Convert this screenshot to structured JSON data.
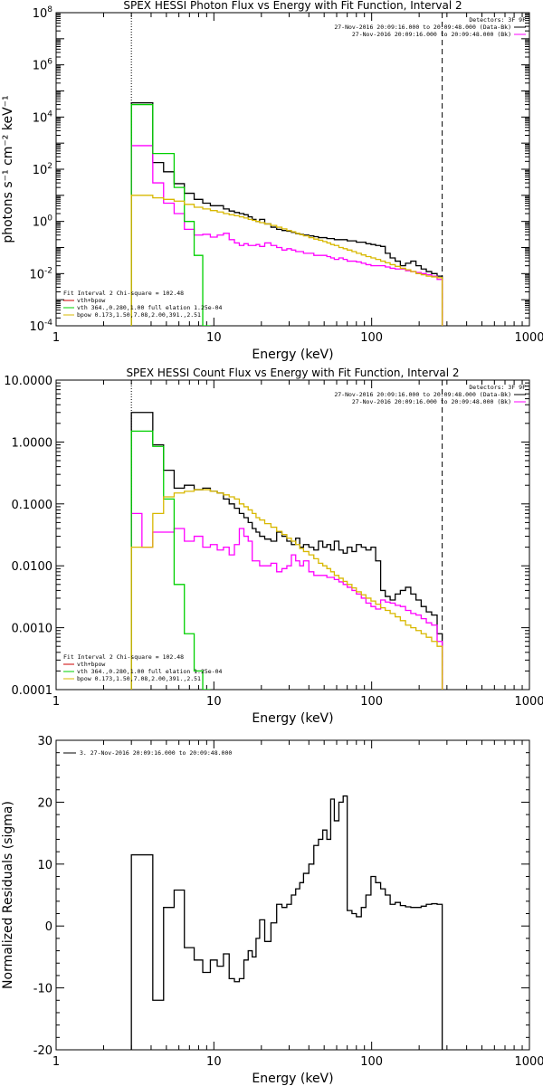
{
  "colors": {
    "data": "#000000",
    "total": "#ff00ff",
    "vth": "#00d000",
    "bpow": "#d8b800",
    "legend_red": "#cc0000"
  },
  "chart_data": [
    {
      "type": "line",
      "title": "SPEX HESSI Photon Flux vs Energy with Fit Function, Interval 2",
      "xlabel": "Energy (keV)",
      "ylabel": "photons s⁻¹ cm⁻² keV⁻¹",
      "xscale": "log",
      "yscale": "log",
      "xlim": [
        1,
        1000
      ],
      "ylim": [
        0.0001,
        100000000
      ],
      "xtick_labels": [
        "1",
        "10",
        "100",
        "1000"
      ],
      "ytick_labels": [
        "10^-4",
        "10^-2",
        "10^0",
        "10^2",
        "10^4",
        "10^6"
      ],
      "ytick_values": [
        0.0001,
        0.01,
        1,
        100,
        10000,
        1000000
      ],
      "yaxis_top_label": "10^8",
      "vlines": [
        {
          "x": 3.0,
          "style": "dotted"
        },
        {
          "x": 280,
          "style": "dashed"
        }
      ],
      "detectors_label": "Detectors: 3F 9F",
      "legend_right": [
        {
          "text": "27-Nov-2016 20:09:16.000 to 20:09:48.000 (Data-Bk)",
          "color": "#000000"
        },
        {
          "text": "27-Nov-2016 20:09:16.000 to 20:09:48.000 (Bk)",
          "color": "#ff00ff"
        }
      ],
      "fit_label": "Fit Interval 2   Chi-square = 102.48",
      "fit_legend": [
        {
          "text": "vth+bpow",
          "color": "#cc0000"
        },
        {
          "text": "vth 364.,0.280,1.00  full elation 1.25e-04",
          "color": "#00d000"
        },
        {
          "text": "bpow 0.173,1.50,7.08,2.00,391.,2.51",
          "color": "#d8b800"
        }
      ],
      "edges": [
        3.0,
        3.5,
        4.1,
        4.8,
        5.6,
        6.5,
        7.5,
        8.5,
        9.5,
        10.5,
        11.5,
        12.5,
        13.5,
        14.5,
        15.5,
        16.5,
        17.5,
        18.5,
        19.5,
        21,
        23,
        25,
        27,
        29,
        31,
        33,
        35,
        37,
        40,
        43,
        46,
        49,
        52,
        55,
        58,
        62,
        66,
        70,
        75,
        80,
        86,
        92,
        99,
        106,
        114,
        122,
        131,
        141,
        152,
        164,
        177,
        191,
        206,
        222,
        240,
        260,
        280
      ],
      "series": [
        {
          "name": "Data-Bk",
          "color": "#000000",
          "values": [
            35000,
            35000,
            180,
            80,
            28,
            12,
            7,
            5,
            4,
            4,
            3,
            2.5,
            2.2,
            2.0,
            1.8,
            1.5,
            1.2,
            1.0,
            1.2,
            0.8,
            0.6,
            0.5,
            0.45,
            0.42,
            0.38,
            0.34,
            0.32,
            0.3,
            0.28,
            0.26,
            0.24,
            0.24,
            0.22,
            0.22,
            0.2,
            0.2,
            0.2,
            0.18,
            0.18,
            0.16,
            0.16,
            0.14,
            0.13,
            0.12,
            0.11,
            0.06,
            0.04,
            0.03,
            0.02,
            0.025,
            0.03,
            0.02,
            0.015,
            0.012,
            0.01,
            0.008
          ]
        },
        {
          "name": "Bk",
          "color": "#ff00ff",
          "values": [
            800,
            800,
            30,
            5,
            2,
            0.5,
            0.3,
            0.32,
            0.25,
            0.3,
            0.35,
            0.2,
            0.15,
            0.12,
            0.14,
            0.12,
            0.12,
            0.13,
            0.11,
            0.15,
            0.12,
            0.1,
            0.08,
            0.09,
            0.08,
            0.07,
            0.07,
            0.06,
            0.06,
            0.05,
            0.05,
            0.05,
            0.045,
            0.04,
            0.035,
            0.04,
            0.035,
            0.03,
            0.03,
            0.028,
            0.025,
            0.022,
            0.02,
            0.02,
            0.02,
            0.018,
            0.016,
            0.015,
            0.015,
            0.013,
            0.012,
            0.011,
            0.01,
            0.009,
            0.008,
            0.006
          ]
        },
        {
          "name": "vth",
          "color": "#00d000",
          "values": [
            30000,
            30000,
            400,
            400,
            20,
            1.0,
            0.05,
            0.0001
          ]
        },
        {
          "name": "bpow",
          "color": "#d8b800",
          "values": [
            10,
            10,
            8,
            7,
            6,
            4.5,
            3.5,
            3.0,
            2.6,
            2.3,
            2.0,
            1.8,
            1.65,
            1.5,
            1.35,
            1.2,
            1.1,
            1.0,
            0.9,
            0.8,
            0.7,
            0.6,
            0.52,
            0.45,
            0.4,
            0.35,
            0.31,
            0.28,
            0.24,
            0.21,
            0.19,
            0.17,
            0.15,
            0.13,
            0.12,
            0.1,
            0.09,
            0.08,
            0.07,
            0.06,
            0.052,
            0.045,
            0.04,
            0.035,
            0.03,
            0.026,
            0.022,
            0.019,
            0.016,
            0.014,
            0.012,
            0.01,
            0.009,
            0.008,
            0.0075,
            0.007
          ]
        }
      ]
    },
    {
      "type": "line",
      "title": "SPEX HESSI Count Flux vs Energy with Fit Function, Interval 2",
      "xlabel": "Energy (keV)",
      "ylabel": "",
      "xscale": "log",
      "yscale": "log",
      "xlim": [
        1,
        1000
      ],
      "ylim": [
        0.0001,
        10
      ],
      "xtick_labels": [
        "1",
        "10",
        "100",
        "1000"
      ],
      "ytick_labels": [
        "0.0001",
        "0.0010",
        "0.0100",
        "0.1000",
        "1.0000",
        "10.0000"
      ],
      "ytick_values": [
        0.0001,
        0.001,
        0.01,
        0.1,
        1,
        10
      ],
      "vlines": [
        {
          "x": 3.0,
          "style": "dotted"
        },
        {
          "x": 280,
          "style": "dashed"
        }
      ],
      "detectors_label": "Detectors: 3F 9F",
      "legend_right": [
        {
          "text": "27-Nov-2016 20:09:16.000 to 20:09:48.000 (Data-Bk)",
          "color": "#000000"
        },
        {
          "text": "27-Nov-2016 20:09:16.000 to 20:09:48.000 (Bk)",
          "color": "#ff00ff"
        }
      ],
      "fit_label": "Fit Interval 2   Chi-square = 102.48",
      "fit_legend": [
        {
          "text": "vth+bpow",
          "color": "#cc0000"
        },
        {
          "text": "vth 364.,0.280,1.00  full elation 1.25e-04",
          "color": "#00d000"
        },
        {
          "text": "bpow 0.173,1.50,7.08,2.00,391.,2.51",
          "color": "#d8b800"
        }
      ],
      "edges": [
        3.0,
        3.5,
        4.1,
        4.8,
        5.6,
        6.5,
        7.5,
        8.5,
        9.5,
        10.5,
        11.5,
        12.5,
        13.5,
        14.5,
        15.5,
        16.5,
        17.5,
        18.5,
        19.5,
        21,
        23,
        25,
        27,
        29,
        31,
        33,
        35,
        37,
        40,
        43,
        46,
        49,
        52,
        55,
        58,
        62,
        66,
        70,
        75,
        80,
        86,
        92,
        99,
        106,
        114,
        122,
        131,
        141,
        152,
        164,
        177,
        191,
        206,
        222,
        240,
        260,
        280
      ],
      "series": [
        {
          "name": "Data-Bk",
          "color": "#000000",
          "values": [
            3.0,
            3.0,
            0.9,
            0.35,
            0.18,
            0.2,
            0.17,
            0.18,
            0.16,
            0.15,
            0.12,
            0.1,
            0.085,
            0.07,
            0.06,
            0.05,
            0.04,
            0.035,
            0.03,
            0.027,
            0.025,
            0.035,
            0.03,
            0.025,
            0.022,
            0.028,
            0.02,
            0.022,
            0.02,
            0.018,
            0.025,
            0.02,
            0.022,
            0.018,
            0.025,
            0.018,
            0.016,
            0.02,
            0.017,
            0.022,
            0.02,
            0.018,
            0.02,
            0.012,
            0.004,
            0.0032,
            0.0028,
            0.0035,
            0.004,
            0.0045,
            0.0035,
            0.0028,
            0.0022,
            0.0018,
            0.0016,
            0.0008
          ]
        },
        {
          "name": "Bk",
          "color": "#ff00ff",
          "values": [
            0.07,
            0.02,
            0.035,
            0.035,
            0.04,
            0.025,
            0.03,
            0.02,
            0.022,
            0.018,
            0.02,
            0.015,
            0.022,
            0.04,
            0.03,
            0.025,
            0.012,
            0.012,
            0.01,
            0.01,
            0.011,
            0.008,
            0.009,
            0.01,
            0.015,
            0.012,
            0.01,
            0.012,
            0.008,
            0.007,
            0.007,
            0.007,
            0.0065,
            0.0065,
            0.006,
            0.0055,
            0.005,
            0.0045,
            0.004,
            0.0035,
            0.003,
            0.0025,
            0.0022,
            0.002,
            0.0028,
            0.0026,
            0.0025,
            0.0023,
            0.0022,
            0.0019,
            0.0017,
            0.0016,
            0.0014,
            0.0012,
            0.0011,
            0.0006
          ]
        },
        {
          "name": "vth",
          "color": "#00d000",
          "values": [
            1.5,
            1.5,
            0.85,
            0.12,
            0.005,
            0.0008,
            0.0002,
            0.0001
          ]
        },
        {
          "name": "bpow",
          "color": "#d8b800",
          "values": [
            0.02,
            0.02,
            0.07,
            0.13,
            0.15,
            0.16,
            0.17,
            0.17,
            0.16,
            0.15,
            0.14,
            0.13,
            0.12,
            0.1,
            0.09,
            0.08,
            0.07,
            0.06,
            0.055,
            0.048,
            0.042,
            0.036,
            0.032,
            0.028,
            0.025,
            0.022,
            0.019,
            0.017,
            0.015,
            0.013,
            0.011,
            0.01,
            0.009,
            0.008,
            0.007,
            0.0063,
            0.0056,
            0.005,
            0.0044,
            0.0038,
            0.0034,
            0.003,
            0.0027,
            0.0024,
            0.0021,
            0.0019,
            0.0017,
            0.0015,
            0.0013,
            0.0011,
            0.001,
            0.0009,
            0.0008,
            0.0007,
            0.0006,
            0.0005
          ]
        }
      ]
    },
    {
      "type": "line",
      "title": "",
      "xlabel": "Energy (keV)",
      "ylabel": "Normalized Residuals (sigma)",
      "xscale": "log",
      "yscale": "linear",
      "xlim": [
        1,
        1000
      ],
      "ylim": [
        -20,
        30
      ],
      "xtick_labels": [
        "1",
        "10",
        "100",
        "1000"
      ],
      "ytick_labels": [
        "-20",
        "-10",
        "0",
        "10",
        "20",
        "30"
      ],
      "ytick_values": [
        -20,
        -10,
        0,
        10,
        20,
        30
      ],
      "legend_right": [
        {
          "text": "3. 27-Nov-2016 20:09:16.000 to 20:09:48.000",
          "color": "#000000"
        }
      ],
      "edges": [
        3.0,
        4.1,
        4.8,
        5.6,
        6.5,
        7.5,
        8.5,
        9.5,
        10.5,
        11.5,
        12.5,
        13.5,
        14.5,
        15.5,
        16.5,
        17.5,
        18.5,
        19.5,
        21,
        23,
        25,
        27,
        29,
        31,
        33,
        35,
        37,
        40,
        43,
        46,
        49,
        52,
        55,
        58,
        62,
        66,
        70,
        75,
        80,
        86,
        92,
        99,
        106,
        114,
        122,
        131,
        141,
        152,
        164,
        177,
        191,
        206,
        222,
        240,
        260,
        280
      ],
      "series": [
        {
          "name": "Residuals",
          "color": "#000000",
          "values": [
            11.5,
            -12,
            3,
            5.8,
            -3.5,
            -5.5,
            -7.5,
            -5.5,
            -6.5,
            -4.5,
            -8.5,
            -9,
            -8.5,
            -5.5,
            -4,
            -5,
            -2,
            1,
            -2.5,
            0.5,
            3.5,
            3,
            3.5,
            5,
            6,
            7,
            8.5,
            10,
            13,
            14,
            15.5,
            14,
            20.5,
            17,
            20,
            21,
            2.5,
            2,
            1.5,
            3,
            5,
            8,
            7,
            6,
            5,
            3.5,
            3.8,
            3.3,
            3.1,
            3.0,
            3.0,
            3.2,
            3.5,
            3.6,
            3.5
          ]
        }
      ]
    }
  ]
}
